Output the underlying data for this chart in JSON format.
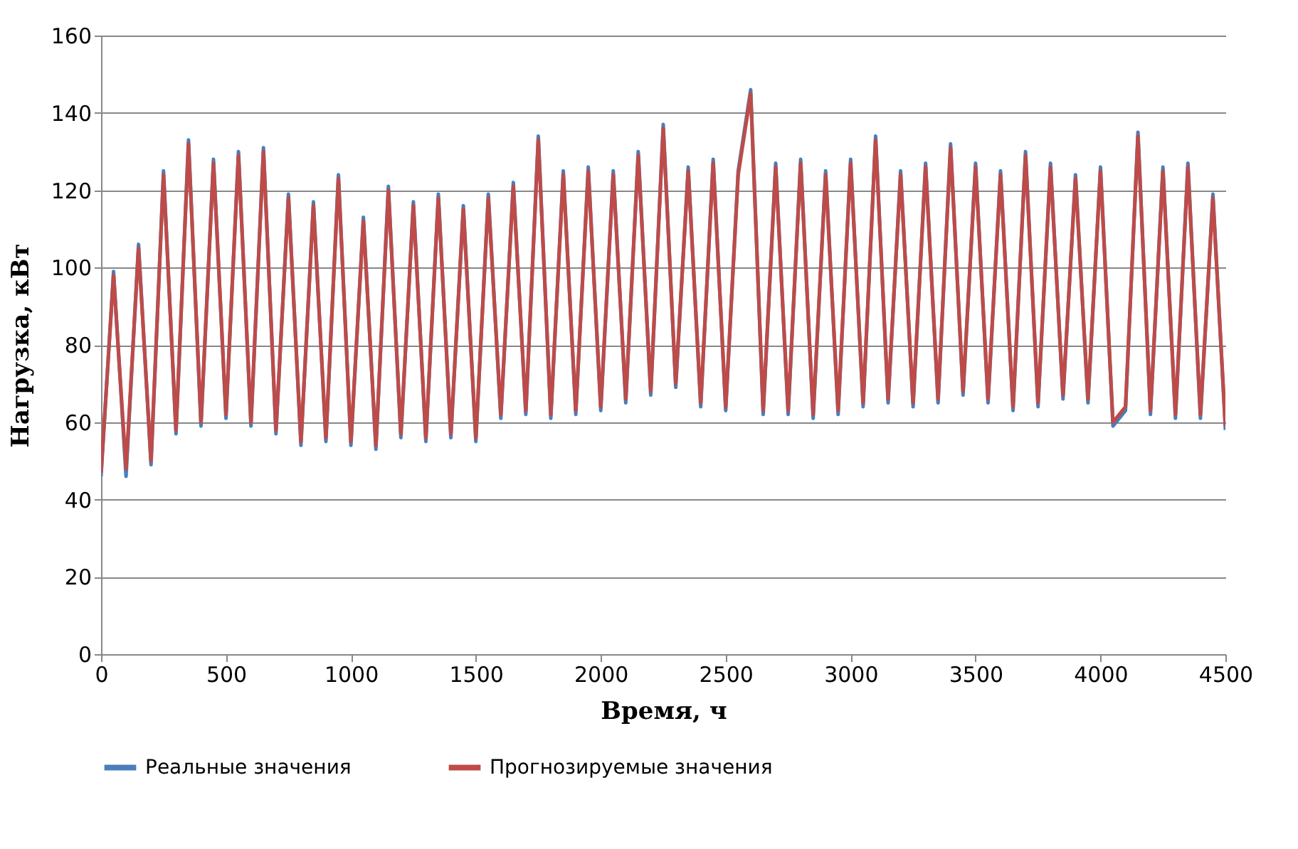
{
  "chart_data": {
    "type": "line",
    "xlabel": "Время, ч",
    "ylabel": "Нагрузка, кВт",
    "xlim": [
      0,
      4500
    ],
    "xticks": [
      0,
      500,
      1000,
      1500,
      2000,
      2500,
      3000,
      3500,
      4000,
      4500
    ],
    "ylim": [
      0,
      160
    ],
    "yticks": [
      0,
      20,
      40,
      60,
      80,
      100,
      120,
      140,
      160
    ],
    "grid": "y",
    "legend": "bottom",
    "marker": "none",
    "line_style": "solid",
    "x": [
      0,
      50,
      100,
      150,
      200,
      250,
      300,
      350,
      400,
      450,
      500,
      550,
      600,
      650,
      700,
      750,
      800,
      850,
      900,
      950,
      1000,
      1050,
      1100,
      1150,
      1200,
      1250,
      1300,
      1350,
      1400,
      1450,
      1500,
      1550,
      1600,
      1650,
      1700,
      1750,
      1800,
      1850,
      1900,
      1950,
      2000,
      2050,
      2100,
      2150,
      2200,
      2250,
      2300,
      2350,
      2400,
      2450,
      2500,
      2550,
      2600,
      2650,
      2700,
      2750,
      2800,
      2850,
      2900,
      2950,
      3000,
      3050,
      3100,
      3150,
      3200,
      3250,
      3300,
      3350,
      3400,
      3450,
      3500,
      3550,
      3600,
      3650,
      3700,
      3750,
      3800,
      3850,
      3900,
      3950,
      4000,
      4050,
      4100,
      4150,
      4200,
      4250,
      4300,
      4350,
      4400,
      4450,
      4500
    ],
    "series": [
      {
        "name": "Реальные значения",
        "color": "#4a7ebb",
        "values": [
          46,
          99,
          46,
          106,
          49,
          125,
          57,
          133,
          59,
          128,
          61,
          130,
          59,
          131,
          57,
          119,
          54,
          117,
          55,
          124,
          54,
          113,
          53,
          121,
          56,
          117,
          55,
          119,
          56,
          116,
          55,
          119,
          61,
          122,
          62,
          134,
          61,
          125,
          62,
          126,
          63,
          125,
          65,
          130,
          67,
          137,
          69,
          126,
          64,
          128,
          63,
          125,
          146,
          62,
          127,
          62,
          128,
          61,
          125,
          62,
          128,
          64,
          134,
          65,
          125,
          64,
          127,
          65,
          132,
          67,
          127,
          65,
          125,
          63,
          130,
          64,
          127,
          66,
          124,
          65,
          126,
          59,
          63,
          135,
          62,
          126,
          61,
          127,
          61,
          119,
          58
        ]
      },
      {
        "name": "Прогнозируемые значения",
        "color": "#be4b48",
        "values": [
          47,
          98,
          48,
          105,
          50,
          124,
          58,
          132,
          60,
          127,
          62,
          129,
          60,
          130,
          58,
          118,
          55,
          116,
          56,
          123,
          55,
          112,
          54,
          120,
          57,
          116,
          56,
          118,
          57,
          115,
          56,
          118,
          62,
          121,
          63,
          133,
          62,
          124,
          63,
          125,
          64,
          124,
          66,
          129,
          68,
          136,
          70,
          125,
          65,
          127,
          64,
          124,
          145,
          63,
          126,
          63,
          127,
          62,
          124,
          63,
          127,
          65,
          133,
          66,
          124,
          65,
          126,
          66,
          131,
          68,
          126,
          66,
          124,
          64,
          129,
          65,
          126,
          67,
          123,
          66,
          125,
          60,
          64,
          134,
          63,
          125,
          62,
          126,
          62,
          118,
          59
        ]
      }
    ]
  }
}
